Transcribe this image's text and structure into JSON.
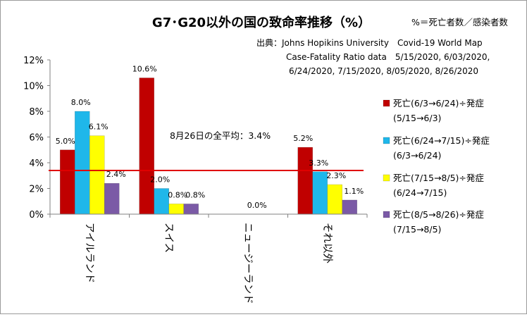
{
  "chart_data": {
    "type": "bar",
    "title": "G7･G20以外の国の致命率推移（%）",
    "subtitle": "%＝死亡者数／感染者数",
    "source_lines": [
      "出典：Johns Hopikins University　Covid-19 World Map",
      "Case-Fatality Ratio data　5/15/2020, 6/03/2020,",
      "6/24/2020, 7/15/2020, 8/05/2020, 8/26/2020"
    ],
    "categories": [
      "アイルランド",
      "スイス",
      "ニュージーランド",
      "それ以外"
    ],
    "series": [
      {
        "name": "死亡(6/3→6/24)÷発症(5/15→6/3)",
        "legend_lines": [
          "死亡(6/3→6/24)÷発症",
          "(5/15→6/3)"
        ],
        "color": "#c00000",
        "values": [
          5.0,
          10.6,
          0.0,
          5.2
        ],
        "labels": [
          "5.0%",
          "10.6%",
          "",
          "5.2%"
        ]
      },
      {
        "name": "死亡(6/24→7/15)÷発症(6/3→6/24)",
        "legend_lines": [
          "死亡(6/24→7/15)÷発症",
          "(6/3→6/24)"
        ],
        "color": "#1fb7ea",
        "values": [
          8.0,
          2.0,
          0.0,
          3.3
        ],
        "labels": [
          "8.0%",
          "2.0%",
          "",
          "3.3%"
        ]
      },
      {
        "name": "死亡(7/15→8/5)÷発症(6/24→7/15)",
        "legend_lines": [
          "死亡(7/15→8/5)÷発症",
          "(6/24→7/15)"
        ],
        "color": "#ffff00",
        "values": [
          6.1,
          0.8,
          0.0,
          2.3
        ],
        "labels": [
          "6.1%",
          "0.8%",
          "0.0%",
          "2.3%"
        ]
      },
      {
        "name": "死亡(8/5→8/26)÷発症(7/15→8/5)",
        "legend_lines": [
          "死亡(8/5→8/26)÷発症",
          "(7/15→8/5)"
        ],
        "color": "#7b5aa6",
        "values": [
          2.4,
          0.8,
          0.0,
          1.1
        ],
        "labels": [
          "2.4%",
          "0.8%",
          "",
          "1.1%"
        ]
      }
    ],
    "yticks": [
      "0%",
      "2%",
      "4%",
      "6%",
      "8%",
      "10%",
      "12%"
    ],
    "ylim": [
      0,
      12
    ],
    "reference_line": {
      "value": 3.4,
      "label": "8月26日の全平均：3.4%",
      "color": "#e00000"
    },
    "grid": false,
    "legend_position": "right"
  }
}
